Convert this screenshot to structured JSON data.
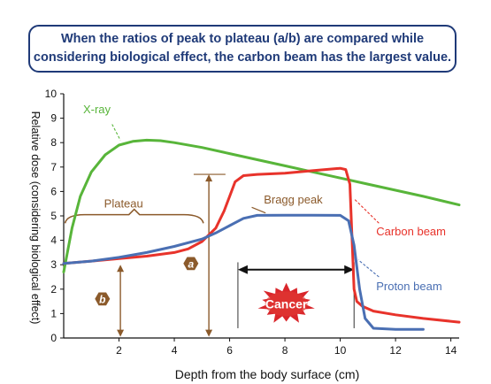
{
  "caption": {
    "line1": "When the ratios of peak to plateau (a/b) are compared while",
    "line2": "considering biological effect, the carbon beam has the largest value."
  },
  "colors": {
    "xray": "#58b53a",
    "carbon": "#e8332b",
    "proton": "#4a6fb3",
    "annotation": "#8b5a2b",
    "caption": "#1f3a78",
    "cancer": "#d9262b"
  },
  "chart_data": {
    "type": "line",
    "xlabel": "Depth from the body surface (cm)",
    "ylabel": "Relative dose (considering biological effect)",
    "xlim": [
      0,
      14.3
    ],
    "ylim": [
      0,
      10
    ],
    "xticks": [
      2,
      4,
      6,
      8,
      10,
      12,
      14
    ],
    "yticks": [
      0,
      1,
      2,
      3,
      4,
      5,
      6,
      7,
      8,
      9,
      10
    ],
    "grid": false,
    "series": [
      {
        "name": "X-ray",
        "key": "xray",
        "x": [
          0,
          0.3,
          0.6,
          1.0,
          1.5,
          2.0,
          2.5,
          3.0,
          3.5,
          4.0,
          5.0,
          6.0,
          7.0,
          8.0,
          9.0,
          10.0,
          11.0,
          12.0,
          13.0,
          14.3
        ],
        "y": [
          2.7,
          4.5,
          5.8,
          6.8,
          7.5,
          7.9,
          8.05,
          8.1,
          8.08,
          8.0,
          7.8,
          7.55,
          7.3,
          7.05,
          6.8,
          6.55,
          6.3,
          6.05,
          5.8,
          5.45
        ]
      },
      {
        "name": "Carbon beam",
        "key": "carbon",
        "x": [
          0,
          1,
          2,
          3,
          4,
          4.5,
          5.0,
          5.5,
          5.8,
          6.0,
          6.2,
          6.5,
          7.0,
          8.0,
          9.0,
          10.0,
          10.2,
          10.35,
          10.5,
          10.6,
          10.8,
          11.2,
          12,
          13,
          14.3
        ],
        "y": [
          3.05,
          3.15,
          3.25,
          3.35,
          3.5,
          3.65,
          3.95,
          4.5,
          5.2,
          5.8,
          6.4,
          6.65,
          6.7,
          6.75,
          6.85,
          6.95,
          6.9,
          6.3,
          2.0,
          1.5,
          1.3,
          1.1,
          0.95,
          0.8,
          0.65
        ]
      },
      {
        "name": "Proton beam",
        "key": "proton",
        "x": [
          0,
          1,
          2,
          3,
          4,
          5.0,
          5.5,
          6.0,
          6.5,
          7.0,
          8.0,
          9.0,
          10.0,
          10.3,
          10.5,
          10.7,
          10.9,
          11.2,
          12,
          13
        ],
        "y": [
          3.05,
          3.15,
          3.3,
          3.5,
          3.75,
          4.05,
          4.3,
          4.6,
          4.9,
          5.02,
          5.03,
          5.03,
          5.02,
          4.8,
          3.8,
          2.0,
          0.8,
          0.4,
          0.35,
          0.35
        ]
      }
    ],
    "annotations": {
      "plateau": "Plateau",
      "bragg_peak": "Bragg peak",
      "a": "a",
      "b": "b",
      "cancer": "Cancer"
    }
  }
}
